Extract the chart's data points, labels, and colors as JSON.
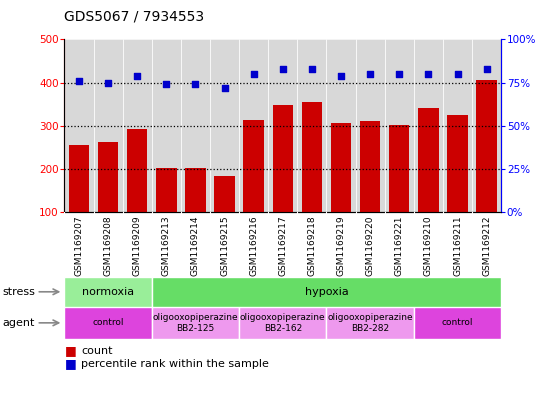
{
  "title": "GDS5067 / 7934553",
  "samples": [
    "GSM1169207",
    "GSM1169208",
    "GSM1169209",
    "GSM1169213",
    "GSM1169214",
    "GSM1169215",
    "GSM1169216",
    "GSM1169217",
    "GSM1169218",
    "GSM1169219",
    "GSM1169220",
    "GSM1169221",
    "GSM1169210",
    "GSM1169211",
    "GSM1169212"
  ],
  "counts": [
    255,
    262,
    293,
    202,
    202,
    183,
    313,
    348,
    356,
    307,
    310,
    302,
    340,
    325,
    406
  ],
  "percentiles": [
    76,
    75,
    79,
    74,
    74,
    72,
    80,
    83,
    83,
    79,
    80,
    80,
    80,
    80,
    83
  ],
  "bar_color": "#cc0000",
  "dot_color": "#0000cc",
  "ylim_left": [
    100,
    500
  ],
  "ylim_right": [
    0,
    100
  ],
  "yticks_left": [
    100,
    200,
    300,
    400,
    500
  ],
  "yticks_right": [
    0,
    25,
    50,
    75,
    100
  ],
  "yticklabels_right": [
    "0%",
    "25%",
    "50%",
    "75%",
    "100%"
  ],
  "dotted_line_values": [
    200,
    300,
    400
  ],
  "stress_groups": [
    {
      "label": "normoxia",
      "start": 0,
      "end": 3,
      "color": "#99ee99"
    },
    {
      "label": "hypoxia",
      "start": 3,
      "end": 15,
      "color": "#66dd66"
    }
  ],
  "agent_groups": [
    {
      "label": "control",
      "start": 0,
      "end": 3,
      "color": "#dd44dd"
    },
    {
      "label": "oligooxopiperazine\nBB2-125",
      "start": 3,
      "end": 6,
      "color": "#ee99ee"
    },
    {
      "label": "oligooxopiperazine\nBB2-162",
      "start": 6,
      "end": 9,
      "color": "#ee99ee"
    },
    {
      "label": "oligooxopiperazine\nBB2-282",
      "start": 9,
      "end": 12,
      "color": "#ee99ee"
    },
    {
      "label": "control",
      "start": 12,
      "end": 15,
      "color": "#dd44dd"
    }
  ],
  "plot_bg": "#d8d8d8",
  "fig_bg": "#ffffff"
}
